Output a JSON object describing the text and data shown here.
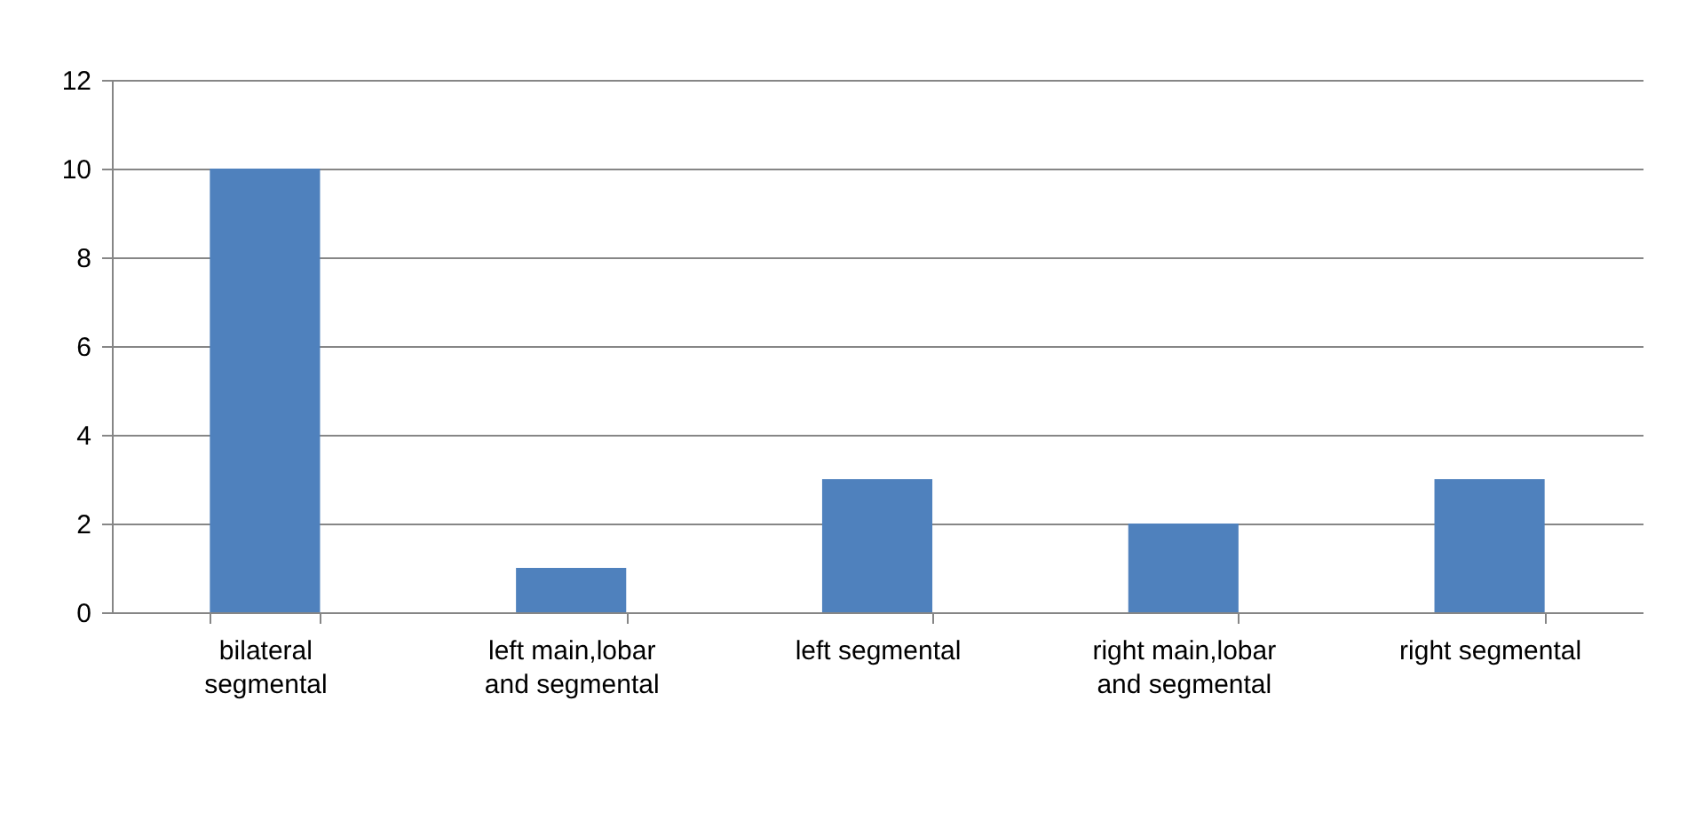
{
  "chart_data": {
    "type": "bar",
    "categories": [
      "bilateral segmental",
      "left main,lobar and segmental",
      "left segmental",
      "right main,lobar and segmental",
      "right segmental"
    ],
    "values": [
      10,
      1,
      3,
      2,
      3
    ],
    "color": "#4f81bd",
    "ylim": [
      0,
      12
    ],
    "yticks": [
      0,
      2,
      4,
      6,
      8,
      10,
      12
    ],
    "grid": "y"
  }
}
